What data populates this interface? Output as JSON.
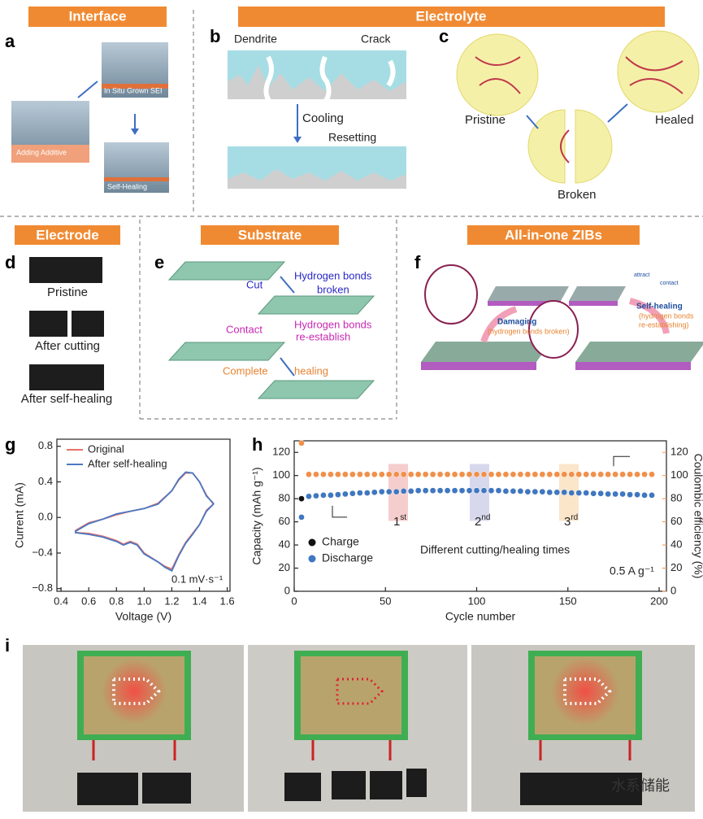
{
  "headers": {
    "interface": "Interface",
    "electrolyte": "Electrolyte",
    "electrode": "Electrode",
    "substrate": "Substrate",
    "all_in_one": "All-in-one ZIBs"
  },
  "panel_letters": [
    "a",
    "b",
    "c",
    "d",
    "e",
    "f",
    "g",
    "h",
    "i"
  ],
  "panel_a": {
    "labels": [
      "In Situ Grown SEI",
      "Adding Additive",
      "Self-Healing"
    ]
  },
  "panel_b": {
    "labels": [
      "Dendrite",
      "Crack",
      "Cooling",
      "Resetting"
    ]
  },
  "panel_c": {
    "labels": [
      "Pristine",
      "Broken",
      "Healed"
    ]
  },
  "panel_d": {
    "labels": [
      "Pristine",
      "After cutting",
      "After self-healing"
    ]
  },
  "panel_e": {
    "labels": [
      "Cut",
      "Hydrogen bonds",
      "broken",
      "Contact",
      "Hydrogen bonds",
      "re-establish",
      "Complete",
      "healing"
    ]
  },
  "panel_f": {
    "labels": [
      "Damaging",
      "(hydrogen bonds broken)",
      "Self-healing",
      "(hydrogen bonds",
      "re-establishing)",
      "attract",
      "contact"
    ]
  },
  "chart_data": [
    {
      "type": "line",
      "xlabel": "Voltage (V)",
      "ylabel": "Current (mA)",
      "annotation": "0.1 mV·s⁻¹",
      "xlim": [
        0.37,
        1.62
      ],
      "ylim": [
        -0.83,
        0.88
      ],
      "xticks": [
        0.4,
        0.6,
        0.8,
        {
          "value": 1.0,
          "label": "1.0"
        },
        1.2,
        1.4,
        1.6
      ],
      "yticks": [
        {
          "value": -0.8,
          "label": "−0.8"
        },
        {
          "value": -0.4,
          "label": "−0.4"
        },
        {
          "value": 0,
          "label": "0.0"
        },
        0.4,
        0.8
      ],
      "x": [
        0.5,
        0.6,
        0.7,
        0.8,
        0.9,
        1.0,
        1.1,
        1.2,
        1.25,
        1.3,
        1.35,
        1.4,
        1.45,
        1.5,
        1.5,
        1.45,
        1.4,
        1.35,
        1.3,
        1.25,
        1.2,
        1.15,
        1.1,
        1.0,
        0.95,
        0.9,
        0.85,
        0.8,
        0.7,
        0.6,
        0.5
      ],
      "series": [
        {
          "name": "Original",
          "color": "#e8706a",
          "values": [
            -0.15,
            -0.06,
            -0.02,
            0.03,
            0.07,
            0.1,
            0.16,
            0.3,
            0.42,
            0.5,
            0.5,
            0.4,
            0.25,
            0.15,
            0.15,
            0.08,
            -0.08,
            -0.18,
            -0.28,
            -0.42,
            -0.58,
            -0.55,
            -0.5,
            -0.4,
            -0.3,
            -0.27,
            -0.3,
            -0.26,
            -0.21,
            -0.18,
            -0.17
          ]
        },
        {
          "name": "After self-healing",
          "color": "#4a78c2",
          "values": [
            -0.16,
            -0.07,
            -0.02,
            0.04,
            0.07,
            0.1,
            0.15,
            0.3,
            0.43,
            0.51,
            0.5,
            0.4,
            0.24,
            0.16,
            0.15,
            0.07,
            -0.08,
            -0.19,
            -0.29,
            -0.43,
            -0.6,
            -0.56,
            -0.5,
            -0.41,
            -0.31,
            -0.28,
            -0.31,
            -0.27,
            -0.22,
            -0.19,
            -0.17
          ]
        }
      ]
    },
    {
      "type": "scatter",
      "xlabel": "Cycle number",
      "ylabel": "Capacity (mAh g⁻¹)",
      "y2label": "Coulombic efficiency (%)",
      "annotations": [
        "Different cutting/healing times",
        "0.5 A g⁻¹"
      ],
      "cycle_marks": [
        {
          "text": "1",
          "sup": "st"
        },
        {
          "text": "2",
          "sup": "nd"
        },
        {
          "text": "3",
          "sup": "rd"
        }
      ],
      "xlim": [
        0,
        204
      ],
      "ylim": [
        0,
        130
      ],
      "y2lim": [
        0,
        130
      ],
      "xticks": [
        0,
        50,
        100,
        150,
        200
      ],
      "yticks": [
        0,
        20,
        40,
        60,
        80,
        100,
        120
      ],
      "y2ticks": [
        0,
        20,
        40,
        60,
        80,
        100,
        120
      ],
      "x": [
        4,
        8,
        12,
        16,
        20,
        24,
        28,
        32,
        36,
        40,
        44,
        48,
        52,
        56,
        60,
        64,
        68,
        72,
        76,
        80,
        84,
        88,
        92,
        96,
        100,
        104,
        108,
        112,
        116,
        120,
        124,
        128,
        132,
        136,
        140,
        144,
        148,
        152,
        156,
        160,
        164,
        168,
        172,
        176,
        180,
        184,
        188,
        192,
        196
      ],
      "series": [
        {
          "name": "Charge",
          "color": "#111111",
          "values": [
            80,
            82,
            82.5,
            83,
            83,
            83.5,
            84,
            84.5,
            85,
            85,
            85.5,
            86,
            86,
            86,
            86.5,
            86.5,
            87,
            87,
            87,
            87,
            87,
            87,
            87,
            87,
            87,
            87,
            87,
            87,
            86.5,
            86.5,
            86.5,
            86,
            86,
            86,
            85.5,
            85.5,
            85.5,
            85,
            85,
            85,
            84.5,
            84.5,
            84,
            84,
            84,
            83.5,
            83.5,
            83,
            83
          ]
        },
        {
          "name": "Discharge",
          "color": "#3f77c0",
          "values": [
            64,
            82,
            82.5,
            83,
            83,
            83.5,
            84,
            84.5,
            85,
            85,
            85.5,
            86,
            86,
            86,
            86.5,
            86.5,
            87,
            87,
            87,
            87,
            87,
            87,
            87,
            87,
            87,
            87,
            87,
            87,
            86.5,
            86.5,
            86.5,
            86,
            86,
            86,
            85.5,
            85.5,
            85.5,
            85,
            85,
            85,
            84.5,
            84.5,
            84,
            84,
            84,
            83.5,
            83.5,
            83,
            83
          ]
        },
        {
          "color": "#f0904a",
          "axis": "y2",
          "values": [
            128,
            101,
            101,
            101,
            101,
            101,
            101,
            101,
            101,
            101,
            101,
            101,
            101,
            101,
            101,
            101,
            101,
            101,
            101,
            101,
            101,
            101,
            101,
            101,
            101,
            101,
            101,
            101,
            101,
            101,
            101,
            101,
            101,
            101,
            101,
            101,
            101,
            101,
            101,
            101,
            101,
            101,
            101,
            101,
            101,
            101,
            101,
            101,
            101
          ]
        }
      ]
    }
  ],
  "watermark": "水系储能"
}
